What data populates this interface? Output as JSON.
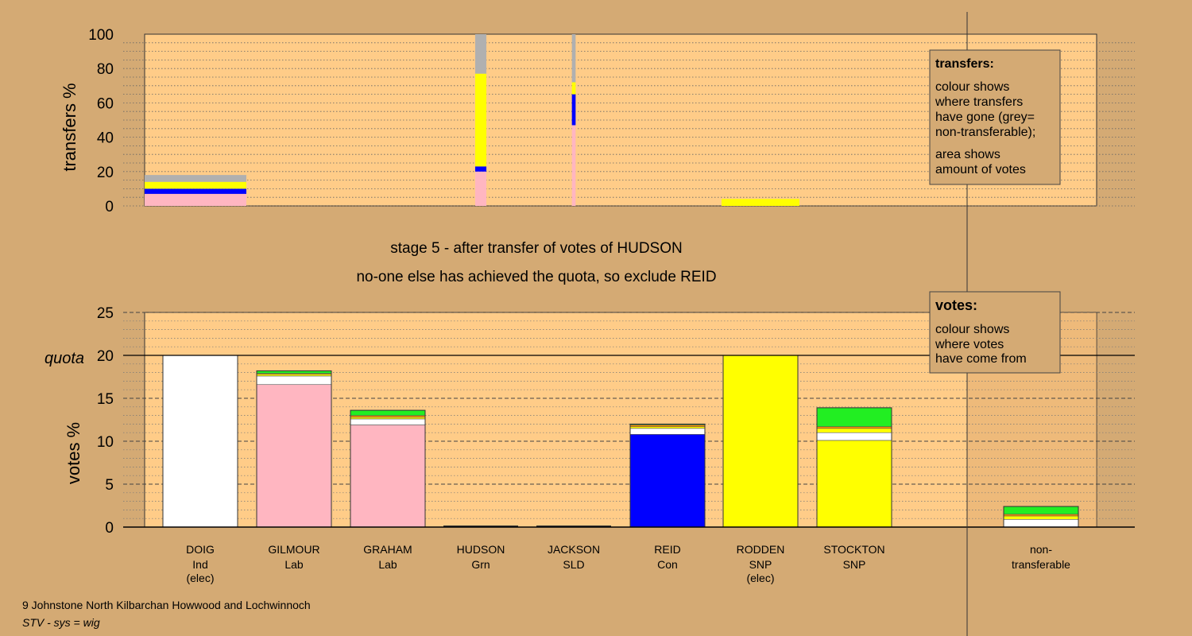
{
  "chart_data": [
    {
      "type": "bar",
      "stacked": true,
      "name": "transfers",
      "ylabel": "transfers %",
      "ylim": [
        0,
        100
      ],
      "yticks": [
        0,
        20,
        40,
        60,
        80,
        100
      ],
      "grid": true,
      "legend_box": {
        "title": "transfers:",
        "lines1": [
          "colour shows",
          "where transfers",
          "have gone (grey=",
          "non-transferable);"
        ],
        "lines2": [
          "area shows",
          "amount of votes"
        ]
      },
      "categories": [
        "DOIG",
        "GILMOUR",
        "GRAHAM",
        "HUDSON",
        "JACKSON",
        "REID",
        "RODDEN",
        "STOCKTON"
      ],
      "bars": [
        {
          "category": "DOIG",
          "width_fraction": 1.0,
          "segments": [
            {
              "color": "#ffb6c1",
              "from": 0,
              "to": 7
            },
            {
              "color": "#0000ff",
              "from": 7,
              "to": 10
            },
            {
              "color": "#ffff00",
              "from": 10,
              "to": 14
            },
            {
              "color": "#b0b0b0",
              "from": 14,
              "to": 18
            }
          ]
        },
        {
          "category": "HUDSON",
          "width_fraction": 0.15,
          "segments": [
            {
              "color": "#ffb6c1",
              "from": 0,
              "to": 20
            },
            {
              "color": "#0000ff",
              "from": 20,
              "to": 23
            },
            {
              "color": "#ffff00",
              "from": 23,
              "to": 77
            },
            {
              "color": "#b0b0b0",
              "from": 77,
              "to": 100
            }
          ]
        },
        {
          "category": "JACKSON",
          "width_fraction": 0.05,
          "segments": [
            {
              "color": "#ffb6c1",
              "from": 0,
              "to": 47
            },
            {
              "color": "#0000ff",
              "from": 47,
              "to": 65
            },
            {
              "color": "#ffff00",
              "from": 65,
              "to": 72
            },
            {
              "color": "#b0b0b0",
              "from": 72,
              "to": 100
            }
          ]
        },
        {
          "category": "RODDEN",
          "width_fraction": 0.8,
          "segments": [
            {
              "color": "#ffff00",
              "from": 0,
              "to": 4
            }
          ]
        }
      ]
    },
    {
      "type": "bar",
      "stacked": true,
      "name": "votes",
      "ylabel": "votes %",
      "ylim": [
        0,
        25
      ],
      "yticks": [
        0,
        5,
        10,
        15,
        20,
        25
      ],
      "quota": 20,
      "quota_label": "quota",
      "grid": true,
      "legend_box": {
        "title": "votes:",
        "lines1": [
          "colour shows",
          "where votes",
          "have come from"
        ]
      },
      "categories": [
        "DOIG",
        "GILMOUR",
        "GRAHAM",
        "HUDSON",
        "JACKSON",
        "REID",
        "RODDEN",
        "STOCKTON",
        "non-transferable"
      ],
      "bars": [
        {
          "category": "DOIG",
          "segments": [
            {
              "color": "#ffffff",
              "from": 0,
              "to": 20
            }
          ]
        },
        {
          "category": "GILMOUR",
          "segments": [
            {
              "color": "#ffb6c1",
              "from": 0,
              "to": 16.6
            },
            {
              "color": "#ffffff",
              "from": 16.6,
              "to": 17.6
            },
            {
              "color": "#ffff00",
              "from": 17.6,
              "to": 17.8
            },
            {
              "color": "#ff8c00",
              "from": 17.8,
              "to": 17.9
            },
            {
              "color": "#22ee22",
              "from": 17.9,
              "to": 18.2
            }
          ]
        },
        {
          "category": "GRAHAM",
          "segments": [
            {
              "color": "#ffb6c1",
              "from": 0,
              "to": 11.9
            },
            {
              "color": "#ffffff",
              "from": 11.9,
              "to": 12.6
            },
            {
              "color": "#ffff00",
              "from": 12.6,
              "to": 12.8
            },
            {
              "color": "#ff8c00",
              "from": 12.8,
              "to": 13.0
            },
            {
              "color": "#22ee22",
              "from": 13.0,
              "to": 13.6
            }
          ]
        },
        {
          "category": "HUDSON",
          "segments": []
        },
        {
          "category": "JACKSON",
          "segments": []
        },
        {
          "category": "REID",
          "segments": [
            {
              "color": "#0000ff",
              "from": 0,
              "to": 10.8
            },
            {
              "color": "#ffffff",
              "from": 10.8,
              "to": 11.5
            },
            {
              "color": "#ffff00",
              "from": 11.5,
              "to": 11.7
            },
            {
              "color": "#ff8c00",
              "from": 11.7,
              "to": 11.9
            },
            {
              "color": "#22ee22",
              "from": 11.9,
              "to": 12.0
            }
          ]
        },
        {
          "category": "RODDEN",
          "segments": [
            {
              "color": "#ffff00",
              "from": 0,
              "to": 20
            }
          ]
        },
        {
          "category": "STOCKTON",
          "segments": [
            {
              "color": "#ffff00",
              "from": 0,
              "to": 10.1
            },
            {
              "color": "#ffffff",
              "from": 10.1,
              "to": 11.0
            },
            {
              "color": "#ffff00",
              "from": 11.0,
              "to": 11.5
            },
            {
              "color": "#ff8c00",
              "from": 11.5,
              "to": 11.7
            },
            {
              "color": "#22ee22",
              "from": 11.7,
              "to": 13.9
            }
          ]
        },
        {
          "category": "non-transferable",
          "segments": [
            {
              "color": "#ffffff",
              "from": 0,
              "to": 0.9
            },
            {
              "color": "#ffff00",
              "from": 0.9,
              "to": 1.3
            },
            {
              "color": "#ff8c00",
              "from": 1.3,
              "to": 1.5
            },
            {
              "color": "#22ee22",
              "from": 1.5,
              "to": 2.4
            }
          ]
        }
      ]
    }
  ],
  "labels": {
    "stage_line": "stage 5 - after transfer of votes of HUDSON",
    "status_line": "no-one else has achieved the quota, so exclude REID",
    "footer_ward": "9 Johnstone North Kilbarchan Howwood and Lochwinnoch",
    "footer_system": "STV - sys = wig"
  },
  "candidates": [
    {
      "name": "DOIG",
      "party": "Ind",
      "note": "(elec)"
    },
    {
      "name": "GILMOUR",
      "party": "Lab",
      "note": ""
    },
    {
      "name": "GRAHAM",
      "party": "Lab",
      "note": ""
    },
    {
      "name": "HUDSON",
      "party": "Grn",
      "note": ""
    },
    {
      "name": "JACKSON",
      "party": "SLD",
      "note": ""
    },
    {
      "name": "REID",
      "party": "Con",
      "note": ""
    },
    {
      "name": "RODDEN",
      "party": "SNP",
      "note": "(elec)"
    },
    {
      "name": "STOCKTON",
      "party": "SNP",
      "note": ""
    }
  ],
  "nontransferable_label": [
    "non-",
    "transferable"
  ],
  "colors": {
    "background": "#d4aa74",
    "plot_area": "#ffcc88",
    "pink": "#ffb6c1",
    "blue": "#0000ff",
    "yellow": "#ffff00",
    "grey": "#b0b0b0",
    "white": "#ffffff",
    "orange": "#ff8c00",
    "green": "#22ee22"
  }
}
